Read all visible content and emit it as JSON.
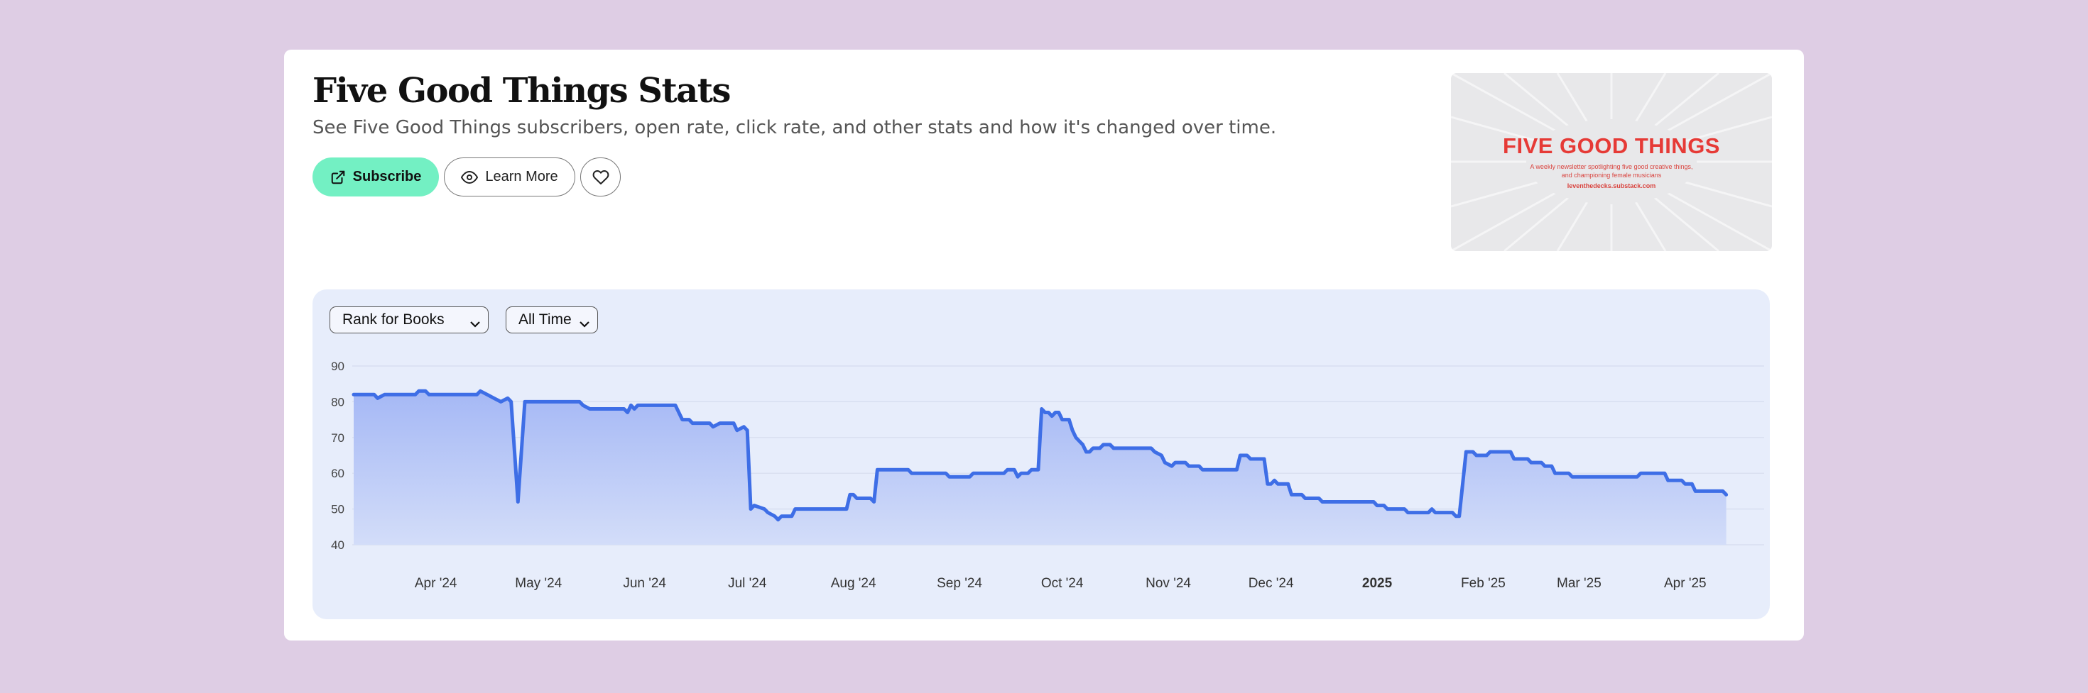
{
  "header": {
    "title": "Five Good Things Stats",
    "subtitle": "See Five Good Things subscribers, open rate, click rate, and other stats and how it's changed over time."
  },
  "actions": {
    "subscribe_label": "Subscribe",
    "learn_more_label": "Learn More",
    "subscribe_icon": "external-link-icon",
    "learn_more_icon": "eye-icon",
    "favorite_icon": "heart-icon"
  },
  "thumbnail": {
    "title": "FIVE GOOD THINGS",
    "line1": "A weekly newsletter spotlighting five good creative things,",
    "line2": "and championing female musicians",
    "line3": "leventhedecks.substack.com"
  },
  "filters": {
    "metric_selected": "Rank for Books",
    "range_selected": "All Time"
  },
  "colors": {
    "page_background": "#decde4",
    "line": "#3e6ee6",
    "fill_top": "#a5b8f5",
    "fill_bottom": "#d3ddf9",
    "subscribe_button": "#73f0c3",
    "brand_red": "#e63a36"
  },
  "chart_data": {
    "type": "area",
    "xlabel": "",
    "ylabel": "",
    "ylim": [
      40,
      90
    ],
    "xlim": [
      "2024-03-08",
      "2025-04-22"
    ],
    "grid": true,
    "y_ticks": [
      40,
      50,
      60,
      70,
      80,
      90
    ],
    "x_ticks": [
      {
        "date": "2024-04-01",
        "label": "Apr '24",
        "bold": false
      },
      {
        "date": "2024-05-01",
        "label": "May '24",
        "bold": false
      },
      {
        "date": "2024-06-01",
        "label": "Jun '24",
        "bold": false
      },
      {
        "date": "2024-07-01",
        "label": "Jul '24",
        "bold": false
      },
      {
        "date": "2024-08-01",
        "label": "Aug '24",
        "bold": false
      },
      {
        "date": "2024-09-01",
        "label": "Sep '24",
        "bold": false
      },
      {
        "date": "2024-10-01",
        "label": "Oct '24",
        "bold": false
      },
      {
        "date": "2024-11-01",
        "label": "Nov '24",
        "bold": false
      },
      {
        "date": "2024-12-01",
        "label": "Dec '24",
        "bold": false
      },
      {
        "date": "2025-01-01",
        "label": "2025",
        "bold": true
      },
      {
        "date": "2025-02-01",
        "label": "Feb '25",
        "bold": false
      },
      {
        "date": "2025-03-01",
        "label": "Mar '25",
        "bold": false
      },
      {
        "date": "2025-04-01",
        "label": "Apr '25",
        "bold": false
      }
    ],
    "series": [
      {
        "points": [
          [
            "2024-03-08",
            82
          ],
          [
            "2024-03-14",
            82
          ],
          [
            "2024-03-15",
            81
          ],
          [
            "2024-03-17",
            82
          ],
          [
            "2024-03-26",
            82
          ],
          [
            "2024-03-27",
            83
          ],
          [
            "2024-03-29",
            83
          ],
          [
            "2024-03-30",
            82
          ],
          [
            "2024-04-13",
            82
          ],
          [
            "2024-04-14",
            83
          ],
          [
            "2024-04-16",
            82
          ],
          [
            "2024-04-18",
            81
          ],
          [
            "2024-04-20",
            80
          ],
          [
            "2024-04-22",
            81
          ],
          [
            "2024-04-23",
            80
          ],
          [
            "2024-04-25",
            52
          ],
          [
            "2024-04-27",
            80
          ],
          [
            "2024-05-13",
            80
          ],
          [
            "2024-05-14",
            79
          ],
          [
            "2024-05-16",
            78
          ],
          [
            "2024-05-26",
            78
          ],
          [
            "2024-05-27",
            77
          ],
          [
            "2024-05-28",
            79
          ],
          [
            "2024-05-29",
            78
          ],
          [
            "2024-05-30",
            79
          ],
          [
            "2024-06-10",
            79
          ],
          [
            "2024-06-12",
            75
          ],
          [
            "2024-06-14",
            75
          ],
          [
            "2024-06-15",
            74
          ],
          [
            "2024-06-20",
            74
          ],
          [
            "2024-06-21",
            73
          ],
          [
            "2024-06-23",
            74
          ],
          [
            "2024-06-27",
            74
          ],
          [
            "2024-06-28",
            72
          ],
          [
            "2024-06-30",
            73
          ],
          [
            "2024-07-01",
            72
          ],
          [
            "2024-07-02",
            50
          ],
          [
            "2024-07-03",
            51
          ],
          [
            "2024-07-06",
            50
          ],
          [
            "2024-07-07",
            49
          ],
          [
            "2024-07-09",
            48
          ],
          [
            "2024-07-10",
            47
          ],
          [
            "2024-07-11",
            48
          ],
          [
            "2024-07-14",
            48
          ],
          [
            "2024-07-15",
            50
          ],
          [
            "2024-07-30",
            50
          ],
          [
            "2024-07-31",
            54
          ],
          [
            "2024-08-01",
            54
          ],
          [
            "2024-08-02",
            53
          ],
          [
            "2024-08-06",
            53
          ],
          [
            "2024-08-07",
            52
          ],
          [
            "2024-08-08",
            61
          ],
          [
            "2024-08-17",
            61
          ],
          [
            "2024-08-18",
            60
          ],
          [
            "2024-08-28",
            60
          ],
          [
            "2024-08-29",
            59
          ],
          [
            "2024-09-04",
            59
          ],
          [
            "2024-09-05",
            60
          ],
          [
            "2024-09-14",
            60
          ],
          [
            "2024-09-15",
            61
          ],
          [
            "2024-09-17",
            61
          ],
          [
            "2024-09-18",
            59
          ],
          [
            "2024-09-19",
            60
          ],
          [
            "2024-09-21",
            60
          ],
          [
            "2024-09-22",
            61
          ],
          [
            "2024-09-24",
            61
          ],
          [
            "2024-09-25",
            78
          ],
          [
            "2024-09-26",
            77
          ],
          [
            "2024-09-27",
            77
          ],
          [
            "2024-09-28",
            76
          ],
          [
            "2024-09-29",
            77
          ],
          [
            "2024-09-30",
            77
          ],
          [
            "2024-10-01",
            75
          ],
          [
            "2024-10-03",
            75
          ],
          [
            "2024-10-04",
            72
          ],
          [
            "2024-10-05",
            70
          ],
          [
            "2024-10-07",
            68
          ],
          [
            "2024-10-08",
            66
          ],
          [
            "2024-10-09",
            66
          ],
          [
            "2024-10-10",
            67
          ],
          [
            "2024-10-12",
            67
          ],
          [
            "2024-10-13",
            68
          ],
          [
            "2024-10-15",
            68
          ],
          [
            "2024-10-16",
            67
          ],
          [
            "2024-10-27",
            67
          ],
          [
            "2024-10-28",
            66
          ],
          [
            "2024-10-30",
            65
          ],
          [
            "2024-10-31",
            63
          ],
          [
            "2024-11-02",
            62
          ],
          [
            "2024-11-03",
            63
          ],
          [
            "2024-11-06",
            63
          ],
          [
            "2024-11-07",
            62
          ],
          [
            "2024-11-10",
            62
          ],
          [
            "2024-11-11",
            61
          ],
          [
            "2024-11-21",
            61
          ],
          [
            "2024-11-22",
            65
          ],
          [
            "2024-11-24",
            65
          ],
          [
            "2024-11-25",
            64
          ],
          [
            "2024-11-29",
            64
          ],
          [
            "2024-11-30",
            57
          ],
          [
            "2024-12-01",
            57
          ],
          [
            "2024-12-02",
            58
          ],
          [
            "2024-12-03",
            57
          ],
          [
            "2024-12-06",
            57
          ],
          [
            "2024-12-07",
            54
          ],
          [
            "2024-12-10",
            54
          ],
          [
            "2024-12-11",
            53
          ],
          [
            "2024-12-15",
            53
          ],
          [
            "2024-12-16",
            52
          ],
          [
            "2024-12-31",
            52
          ],
          [
            "2025-01-01",
            51
          ],
          [
            "2025-01-03",
            51
          ],
          [
            "2025-01-04",
            50
          ],
          [
            "2025-01-09",
            50
          ],
          [
            "2025-01-10",
            49
          ],
          [
            "2025-01-16",
            49
          ],
          [
            "2025-01-17",
            50
          ],
          [
            "2025-01-18",
            49
          ],
          [
            "2025-01-23",
            49
          ],
          [
            "2025-01-24",
            48
          ],
          [
            "2025-01-25",
            48
          ],
          [
            "2025-01-27",
            66
          ],
          [
            "2025-01-29",
            66
          ],
          [
            "2025-01-30",
            65
          ],
          [
            "2025-02-02",
            65
          ],
          [
            "2025-02-03",
            66
          ],
          [
            "2025-02-09",
            66
          ],
          [
            "2025-02-10",
            64
          ],
          [
            "2025-02-14",
            64
          ],
          [
            "2025-02-15",
            63
          ],
          [
            "2025-02-18",
            63
          ],
          [
            "2025-02-19",
            62
          ],
          [
            "2025-02-21",
            62
          ],
          [
            "2025-02-22",
            60
          ],
          [
            "2025-02-26",
            60
          ],
          [
            "2025-02-27",
            59
          ],
          [
            "2025-03-18",
            59
          ],
          [
            "2025-03-19",
            60
          ],
          [
            "2025-03-26",
            60
          ],
          [
            "2025-03-27",
            58
          ],
          [
            "2025-03-31",
            58
          ],
          [
            "2025-04-01",
            57
          ],
          [
            "2025-04-03",
            57
          ],
          [
            "2025-04-04",
            55
          ],
          [
            "2025-04-12",
            55
          ],
          [
            "2025-04-13",
            54
          ]
        ]
      }
    ]
  }
}
